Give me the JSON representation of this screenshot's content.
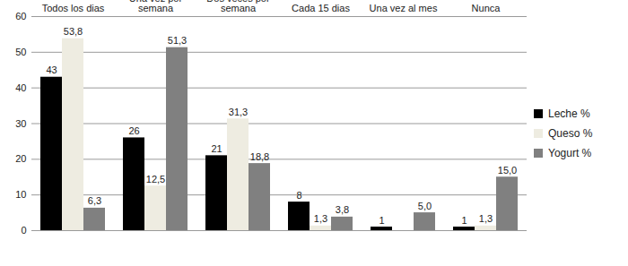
{
  "chart_data": {
    "type": "bar",
    "categories": [
      "Todos los dias",
      "Una vez por semana",
      "Dos veces por semana",
      "Cada 15 dias",
      "Una vez al mes",
      "Nunca"
    ],
    "series": [
      {
        "name": "Leche %",
        "color": "#000000",
        "values": [
          43,
          26,
          21,
          8,
          1,
          1
        ]
      },
      {
        "name": "Queso %",
        "color": "#EEECE1",
        "values": [
          53.8,
          12.5,
          31.3,
          1.3,
          null,
          1.3
        ],
        "value_labels": [
          "53,8",
          "12,5",
          "31,3",
          "1,3",
          null,
          "1,3"
        ]
      },
      {
        "name": "Yogurt %",
        "color": "#808080",
        "values": [
          6.3,
          51.3,
          18.8,
          3.8,
          5.0,
          15.0
        ],
        "value_labels": [
          "6,3",
          "51,3",
          "18,8",
          "3,8",
          "5,0",
          "15,0"
        ]
      }
    ],
    "ylim": [
      0,
      60
    ],
    "yticks": [
      0,
      10,
      20,
      30,
      40,
      50,
      60
    ],
    "grid": true,
    "legend": "right",
    "data_labels": true
  }
}
